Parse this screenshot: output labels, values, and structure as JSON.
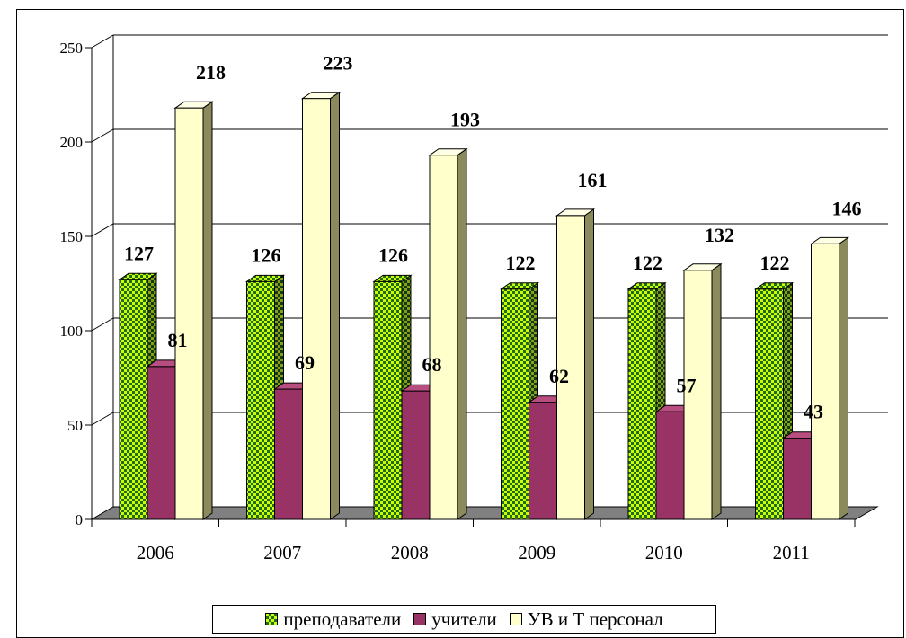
{
  "chart_data": {
    "type": "bar",
    "categories": [
      "2006",
      "2007",
      "2008",
      "2009",
      "2010",
      "2011"
    ],
    "series": [
      {
        "name": "преподаватели",
        "values": [
          127,
          126,
          126,
          122,
          122,
          122
        ]
      },
      {
        "name": "учители",
        "values": [
          81,
          69,
          68,
          62,
          57,
          43
        ]
      },
      {
        "name": "УВ и Т персонал",
        "values": [
          218,
          223,
          193,
          161,
          132,
          146
        ]
      }
    ],
    "ylim": [
      0,
      250
    ],
    "yticks": [
      "0",
      "50",
      "100",
      "150",
      "200",
      "250"
    ],
    "grid": true,
    "legend_position": "bottom",
    "style": "3d-clustered-bar",
    "colors": {
      "series_1_fill": "#ccff00",
      "series_1_pattern": "#1f6b1f",
      "series_2_fill": "#993366",
      "series_3_fill": "#ffffcc",
      "floor": "#808080",
      "grid": "#000000"
    }
  },
  "legend": {
    "items": [
      {
        "label": "преподаватели"
      },
      {
        "label": "учители"
      },
      {
        "label": "УВ и Т персонал"
      }
    ]
  }
}
